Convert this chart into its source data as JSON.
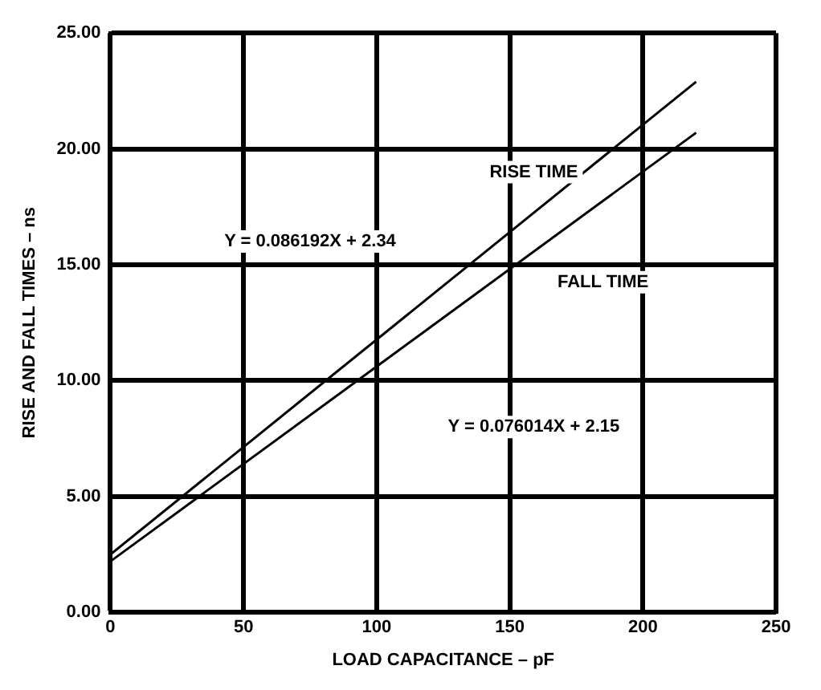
{
  "chart_data": {
    "type": "line",
    "xlabel": "LOAD CAPACITANCE – pF",
    "ylabel": "RISE AND FALL TIMES – ns",
    "xlim": [
      0,
      250
    ],
    "xticks": [
      0,
      50,
      100,
      150,
      200,
      250
    ],
    "ylim": [
      0,
      25
    ],
    "yticks": [
      {
        "value": 0,
        "label": "0.00"
      },
      {
        "value": 5,
        "label": "5.00"
      },
      {
        "value": 10,
        "label": "10.00"
      },
      {
        "value": 15,
        "label": "15.00"
      },
      {
        "value": 20,
        "label": "20.00"
      },
      {
        "value": 25,
        "label": "25.00"
      }
    ],
    "grid": true,
    "legend": false,
    "marker": "none",
    "line_style": "solid",
    "x": [
      0,
      220
    ],
    "series": [
      {
        "name": "RISE TIME",
        "color": "#000000",
        "values": [
          2.5,
          22.9
        ]
      },
      {
        "name": "FALL TIME",
        "color": "#000000",
        "values": [
          2.2,
          20.7
        ]
      }
    ],
    "annotations": [
      "Y = 0.086192X + 2.34",
      "Y = 0.076014X + 2.15"
    ]
  }
}
